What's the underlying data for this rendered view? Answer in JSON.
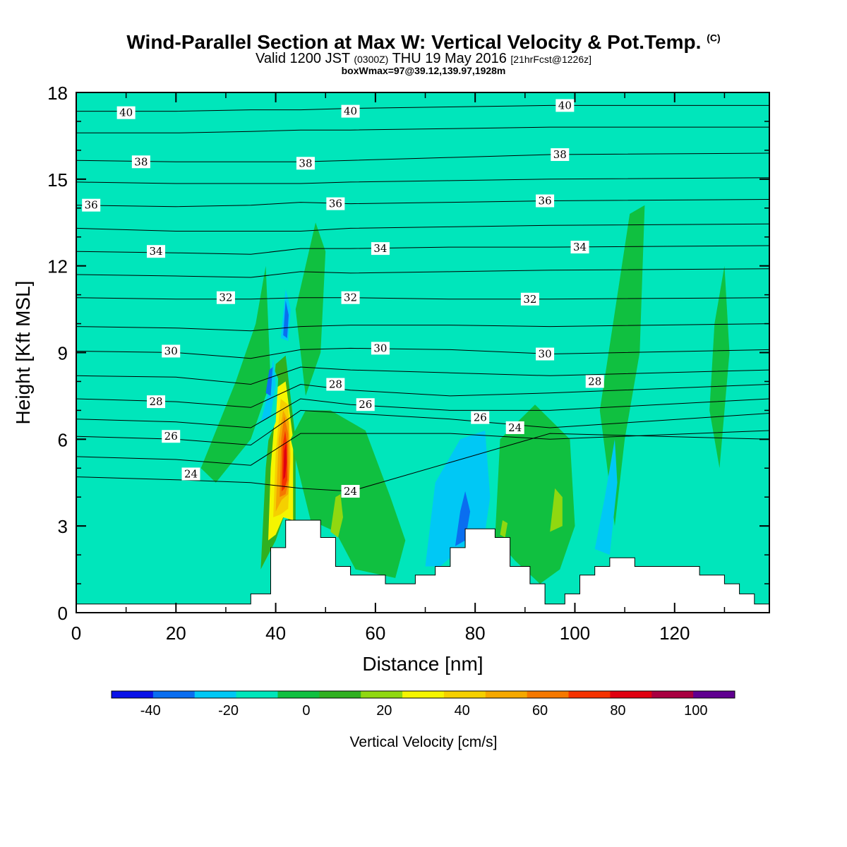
{
  "title": {
    "main": "Wind-Parallel Section at Max W: Vertical Velocity & Pot.Temp.",
    "main_suffix": "(C)",
    "valid_prefix": "Valid 1200 JST",
    "valid_zulu": "(0300Z)",
    "valid_date": "THU 19 May 2016",
    "valid_fcst": "[21hrFcst@1226z]",
    "box_info": "boxWmax=97@39.12,139.97,1928m"
  },
  "chart_data": {
    "type": "contour",
    "xlabel": "Distance [nm]",
    "ylabel": "Height [Kft MSL]",
    "xlim": [
      0,
      139
    ],
    "ylim": [
      0,
      18
    ],
    "x_ticks": [
      0,
      20,
      40,
      60,
      80,
      100,
      120
    ],
    "y_ticks": [
      0,
      3,
      6,
      9,
      12,
      15,
      18
    ],
    "grid": false,
    "fill_variable": "Vertical Velocity [cm/s]",
    "background_color": "#00e6bb",
    "colorbar": {
      "title": "Vertical Velocity [cm/s]",
      "colors": [
        "#0a12e8",
        "#0a6ef0",
        "#00c8f5",
        "#00e6bb",
        "#10c040",
        "#30b020",
        "#90d810",
        "#f5f500",
        "#f5d000",
        "#f5a800",
        "#f57800",
        "#f53200",
        "#e00010",
        "#a80040",
        "#600090"
      ],
      "labels": [
        "-40",
        "-20",
        "0",
        "20",
        "40",
        "60",
        "80",
        "100"
      ],
      "label_values": [
        -40,
        -20,
        0,
        20,
        40,
        60,
        80,
        100
      ],
      "min": -50,
      "max": 110
    },
    "contour_labels": [
      {
        "text": "40",
        "x": 10,
        "y": 17.3
      },
      {
        "text": "40",
        "x": 55,
        "y": 17.35
      },
      {
        "text": "40",
        "x": 98,
        "y": 17.55
      },
      {
        "text": "38",
        "x": 13,
        "y": 15.6
      },
      {
        "text": "38",
        "x": 46,
        "y": 15.55
      },
      {
        "text": "38",
        "x": 97,
        "y": 15.85
      },
      {
        "text": "36",
        "x": 3,
        "y": 14.1
      },
      {
        "text": "36",
        "x": 52,
        "y": 14.15
      },
      {
        "text": "36",
        "x": 94,
        "y": 14.25
      },
      {
        "text": "34",
        "x": 16,
        "y": 12.5
      },
      {
        "text": "34",
        "x": 61,
        "y": 12.6
      },
      {
        "text": "34",
        "x": 101,
        "y": 12.65
      },
      {
        "text": "32",
        "x": 30,
        "y": 10.9
      },
      {
        "text": "32",
        "x": 55,
        "y": 10.9
      },
      {
        "text": "32",
        "x": 91,
        "y": 10.85
      },
      {
        "text": "30",
        "x": 19,
        "y": 9.05
      },
      {
        "text": "30",
        "x": 61,
        "y": 9.15
      },
      {
        "text": "30",
        "x": 94,
        "y": 8.95
      },
      {
        "text": "28",
        "x": 16,
        "y": 7.3
      },
      {
        "text": "28",
        "x": 52,
        "y": 7.9
      },
      {
        "text": "28",
        "x": 104,
        "y": 8.0
      },
      {
        "text": "26",
        "x": 19,
        "y": 6.1
      },
      {
        "text": "26",
        "x": 58,
        "y": 7.2
      },
      {
        "text": "26",
        "x": 81,
        "y": 6.75
      },
      {
        "text": "24",
        "x": 23,
        "y": 4.8
      },
      {
        "text": "24",
        "x": 88,
        "y": 6.4
      },
      {
        "text": "24",
        "x": 55,
        "y": 4.2
      }
    ],
    "isentropes": [
      {
        "theta": 40,
        "y": [
          17.35,
          17.35,
          17.4,
          17.4,
          17.45,
          17.5,
          17.55,
          17.55
        ]
      },
      {
        "theta": 39,
        "y": [
          16.6,
          16.6,
          16.65,
          16.7,
          16.7,
          16.75,
          16.8,
          16.8
        ]
      },
      {
        "theta": 38,
        "y": [
          15.65,
          15.6,
          15.6,
          15.6,
          15.65,
          15.75,
          15.85,
          15.9
        ]
      },
      {
        "theta": 37,
        "y": [
          14.9,
          14.85,
          14.85,
          14.85,
          14.9,
          14.95,
          15.0,
          15.05
        ]
      },
      {
        "theta": 36,
        "y": [
          14.1,
          14.05,
          14.1,
          14.2,
          14.15,
          14.2,
          14.25,
          14.3
        ]
      },
      {
        "theta": 35,
        "y": [
          13.3,
          13.2,
          13.2,
          13.2,
          13.3,
          13.35,
          13.4,
          13.45
        ]
      },
      {
        "theta": 34,
        "y": [
          12.5,
          12.45,
          12.4,
          12.6,
          12.6,
          12.65,
          12.65,
          12.7
        ]
      },
      {
        "theta": 33,
        "y": [
          11.7,
          11.65,
          11.6,
          11.8,
          11.75,
          11.8,
          11.85,
          11.9
        ]
      },
      {
        "theta": 32,
        "y": [
          10.9,
          10.85,
          10.85,
          10.9,
          10.9,
          10.85,
          10.85,
          10.9
        ]
      },
      {
        "theta": 31,
        "y": [
          9.9,
          9.85,
          9.75,
          9.9,
          9.95,
          9.95,
          9.9,
          10.0
        ]
      },
      {
        "theta": 30,
        "y": [
          9.05,
          9.0,
          8.8,
          9.1,
          9.15,
          9.1,
          8.95,
          9.1
        ]
      },
      {
        "theta": 29,
        "y": [
          8.2,
          8.15,
          7.9,
          8.5,
          8.4,
          8.3,
          8.2,
          8.4
        ]
      },
      {
        "theta": 28,
        "y": [
          7.4,
          7.3,
          7.1,
          7.9,
          7.7,
          7.5,
          7.6,
          7.9
        ]
      },
      {
        "theta": 27,
        "y": [
          6.7,
          6.6,
          6.4,
          7.4,
          7.2,
          7.0,
          7.0,
          7.4
        ]
      },
      {
        "theta": 26,
        "y": [
          6.1,
          6.0,
          5.8,
          7.0,
          6.9,
          6.7,
          6.4,
          6.9
        ]
      },
      {
        "theta": 25,
        "y": [
          5.4,
          5.3,
          5.1,
          6.2,
          6.2,
          6.2,
          6.0,
          6.3
        ]
      },
      {
        "theta": 24,
        "y": [
          4.7,
          4.6,
          4.5,
          4.3,
          4.2,
          5.2,
          6.2,
          6.0
        ]
      }
    ],
    "isentrope_x": [
      0,
      20,
      35,
      45,
      55,
      75,
      95,
      139
    ],
    "terrain": {
      "x": [
        0,
        35,
        35,
        39,
        39,
        42,
        42,
        45,
        45,
        49,
        49,
        52,
        52,
        55,
        55,
        62,
        62,
        68,
        68,
        72,
        72,
        75,
        75,
        78,
        78,
        84,
        84,
        87,
        87,
        91,
        91,
        94,
        94,
        98,
        98,
        101,
        101,
        104,
        104,
        107,
        107,
        112,
        112,
        117,
        117,
        125,
        125,
        130,
        130,
        133,
        133,
        136,
        136,
        139
      ],
      "y": [
        0.3,
        0.3,
        0.65,
        0.65,
        2.25,
        2.25,
        3.2,
        3.2,
        3.2,
        3.2,
        2.6,
        2.6,
        1.6,
        1.6,
        1.3,
        1.3,
        1.0,
        1.0,
        1.3,
        1.3,
        1.6,
        1.6,
        2.25,
        2.25,
        2.9,
        2.9,
        2.6,
        2.6,
        1.6,
        1.6,
        1.0,
        1.0,
        0.3,
        0.3,
        0.65,
        0.65,
        1.3,
        1.3,
        1.6,
        1.6,
        1.9,
        1.9,
        1.6,
        1.6,
        1.6,
        1.6,
        1.3,
        1.3,
        1.0,
        1.0,
        0.65,
        0.65,
        0.3,
        0.3
      ]
    },
    "w_features": [
      {
        "level": 5,
        "points": [
          [
            37,
            1.5
          ],
          [
            38,
            5
          ],
          [
            40,
            8.6
          ],
          [
            42,
            8.9
          ],
          [
            44,
            6
          ],
          [
            44,
            2.5
          ],
          [
            42,
            3.5
          ],
          [
            40,
            2.5
          ]
        ]
      },
      {
        "level": 7,
        "points": [
          [
            38.5,
            2.5
          ],
          [
            39,
            5
          ],
          [
            40.3,
            7.8
          ],
          [
            42,
            8.0
          ],
          [
            43.5,
            6
          ],
          [
            43.5,
            3.2
          ],
          [
            41.5,
            3.3
          ],
          [
            40,
            2.7
          ]
        ]
      },
      {
        "level": 8,
        "points": [
          [
            39.5,
            3.3
          ],
          [
            40,
            5.5
          ],
          [
            41,
            7.4
          ],
          [
            42.5,
            7.2
          ],
          [
            43,
            5.5
          ],
          [
            42.5,
            3.6
          ],
          [
            41,
            3.4
          ]
        ]
      },
      {
        "level": 9,
        "points": [
          [
            40,
            3.5
          ],
          [
            40.6,
            6
          ],
          [
            41.5,
            7.0
          ],
          [
            42.6,
            6.6
          ],
          [
            42.9,
            5.2
          ],
          [
            42.5,
            4.1
          ],
          [
            41.2,
            3.9
          ]
        ]
      },
      {
        "level": 10,
        "points": [
          [
            40.8,
            4.0
          ],
          [
            41.1,
            6
          ],
          [
            41.7,
            6.8
          ],
          [
            42.5,
            6.2
          ],
          [
            42.6,
            4.6
          ],
          [
            42,
            4.1
          ]
        ]
      },
      {
        "level": 11,
        "points": [
          [
            41.2,
            4.2
          ],
          [
            41.4,
            5.8
          ],
          [
            41.9,
            6.3
          ],
          [
            42.3,
            5.8
          ],
          [
            42.3,
            4.6
          ],
          [
            41.8,
            4.3
          ]
        ]
      },
      {
        "level": 12,
        "points": [
          [
            41.5,
            4.6
          ],
          [
            41.7,
            5.6
          ],
          [
            42.1,
            5.9
          ],
          [
            42.2,
            5.2
          ],
          [
            41.9,
            4.7
          ]
        ]
      },
      {
        "level": 4,
        "points": [
          [
            25,
            5
          ],
          [
            32,
            8
          ],
          [
            36,
            10
          ],
          [
            38,
            12
          ],
          [
            39,
            8
          ],
          [
            35,
            6
          ],
          [
            28,
            4.5
          ]
        ]
      },
      {
        "level": 4,
        "points": [
          [
            43,
            6
          ],
          [
            46,
            7
          ],
          [
            51,
            7
          ],
          [
            58,
            6.3
          ],
          [
            63,
            4
          ],
          [
            66,
            2.5
          ],
          [
            64,
            1.2
          ],
          [
            56,
            1.5
          ],
          [
            52,
            2.8
          ],
          [
            47,
            3.2
          ]
        ]
      },
      {
        "level": 4,
        "points": [
          [
            84,
            2.6
          ],
          [
            85,
            6
          ],
          [
            92,
            7.2
          ],
          [
            99,
            6
          ],
          [
            100,
            3
          ],
          [
            97,
            1.5
          ],
          [
            93,
            1.0
          ],
          [
            88,
            1.8
          ]
        ]
      },
      {
        "level": 4,
        "points": [
          [
            44,
            10.5
          ],
          [
            48,
            13.5
          ],
          [
            50,
            12.5
          ],
          [
            49,
            9
          ],
          [
            46,
            7.5
          ]
        ]
      },
      {
        "level": 4,
        "points": [
          [
            111,
            13.8
          ],
          [
            114,
            14.1
          ],
          [
            113,
            9
          ],
          [
            110,
            6
          ],
          [
            108,
            3
          ],
          [
            105,
            7
          ]
        ]
      },
      {
        "level": 4,
        "points": [
          [
            128,
            10
          ],
          [
            130,
            12
          ],
          [
            131,
            9
          ],
          [
            129,
            5
          ],
          [
            127,
            7
          ]
        ]
      },
      {
        "level": 3,
        "points": [
          [
            36,
            6
          ],
          [
            38,
            7
          ],
          [
            39.5,
            8.5
          ],
          [
            40.5,
            8.1
          ],
          [
            40,
            6.6
          ],
          [
            37,
            5.3
          ]
        ]
      },
      {
        "level": 2,
        "points": [
          [
            37,
            6.6
          ],
          [
            38.5,
            7.6
          ],
          [
            39.5,
            8.8
          ],
          [
            40,
            7.9
          ],
          [
            39,
            6.8
          ]
        ]
      },
      {
        "level": 2,
        "points": [
          [
            41,
            9.5
          ],
          [
            42,
            11.2
          ],
          [
            43,
            10.5
          ],
          [
            42.5,
            9.4
          ]
        ]
      },
      {
        "level": 1,
        "points": [
          [
            41.5,
            9.6
          ],
          [
            42,
            10.8
          ],
          [
            42.6,
            10.3
          ],
          [
            42.3,
            9.5
          ]
        ]
      },
      {
        "level": 1,
        "points": [
          [
            38,
            7.6
          ],
          [
            38.7,
            8.4
          ],
          [
            39.4,
            8.5
          ],
          [
            39,
            7.5
          ]
        ]
      },
      {
        "level": 2,
        "points": [
          [
            70,
            1.6
          ],
          [
            72,
            4.5
          ],
          [
            77,
            6.0
          ],
          [
            82,
            6.3
          ],
          [
            83,
            4
          ],
          [
            82,
            2.8
          ],
          [
            77,
            2.2
          ],
          [
            73,
            1.6
          ]
        ]
      },
      {
        "level": 1,
        "points": [
          [
            76,
            2.3
          ],
          [
            77,
            3.5
          ],
          [
            78,
            4.2
          ],
          [
            79,
            3.5
          ],
          [
            78,
            2.5
          ]
        ]
      },
      {
        "level": 2,
        "points": [
          [
            104,
            2.2
          ],
          [
            106,
            4
          ],
          [
            108,
            6
          ],
          [
            108.5,
            4.5
          ],
          [
            107,
            2
          ]
        ]
      },
      {
        "level": 6,
        "points": [
          [
            51,
            2.8
          ],
          [
            52,
            4
          ],
          [
            53,
            4.1
          ],
          [
            53.5,
            3.3
          ],
          [
            52.5,
            2.6
          ]
        ]
      },
      {
        "level": 6,
        "points": [
          [
            95,
            2.8
          ],
          [
            96,
            4.3
          ],
          [
            97.5,
            4.0
          ],
          [
            97.5,
            3.0
          ]
        ]
      },
      {
        "level": 6,
        "points": [
          [
            85,
            2.7
          ],
          [
            85.5,
            3.2
          ],
          [
            86.5,
            3.1
          ],
          [
            86,
            2.6
          ]
        ]
      }
    ]
  }
}
